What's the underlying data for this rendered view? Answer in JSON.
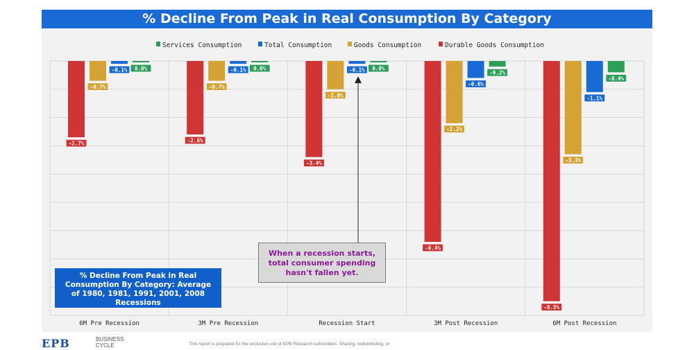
{
  "chart_data": {
    "type": "bar",
    "title": "% Decline From Peak in Real Consumption By Category",
    "categories": [
      "6M Pre Recession",
      "3M Pre Recession",
      "Recession Start",
      "3M Post Recession",
      "6M Post Recession"
    ],
    "series": [
      {
        "name": "Durable Goods Consumption",
        "color": "#d03535",
        "values": [
          -2.7,
          -2.6,
          -3.4,
          -6.4,
          -8.5
        ],
        "labels": [
          "-2.7%",
          "-2.6%",
          "-3.4%",
          "-6.4%",
          "-8.5%"
        ]
      },
      {
        "name": "Goods Consumption",
        "color": "#d4a235",
        "values": [
          -0.7,
          -0.7,
          -1.0,
          -2.2,
          -3.3
        ],
        "labels": [
          "-0.7%",
          "-0.7%",
          "-1.0%",
          "-2.2%",
          "-3.3%"
        ]
      },
      {
        "name": "Total Consumption",
        "color": "#1a6ad6",
        "values": [
          -0.1,
          -0.1,
          -0.1,
          -0.6,
          -1.1
        ],
        "labels": [
          "-0.1%",
          "-0.1%",
          "-0.1%",
          "-0.6%",
          "-1.1%"
        ]
      },
      {
        "name": "Services Consumption",
        "color": "#2f9e5a",
        "values": [
          0.0,
          0.0,
          0.0,
          -0.2,
          -0.4
        ],
        "labels": [
          "0.0%",
          "0.0%",
          "0.0%",
          "-0.2%",
          "-0.4%"
        ]
      }
    ],
    "legend_order": [
      "Services Consumption",
      "Total Consumption",
      "Goods Consumption",
      "Durable Goods Consumption"
    ],
    "ylim": [
      -9,
      0
    ],
    "xlabel": "",
    "ylabel": "",
    "grid": true,
    "legend_position": "top-center",
    "annotations": [
      {
        "text": "When a recession starts, total consumer spending hasn't fallen yet.",
        "points_to": "Total Consumption at Recession Start"
      },
      {
        "text": "% Decline From Peak in Real Consumption By Category: Average of 1980, 1981, 1991, 2001, 2008 Recessions"
      }
    ]
  },
  "footer": {
    "logo": "EPB",
    "brand_line1": "BUSINESS",
    "brand_line2": "CYCLE",
    "disclaimer": "This report is prepared for the exclusive use of EPB Research subscribers. Sharing, redistributing, or"
  }
}
